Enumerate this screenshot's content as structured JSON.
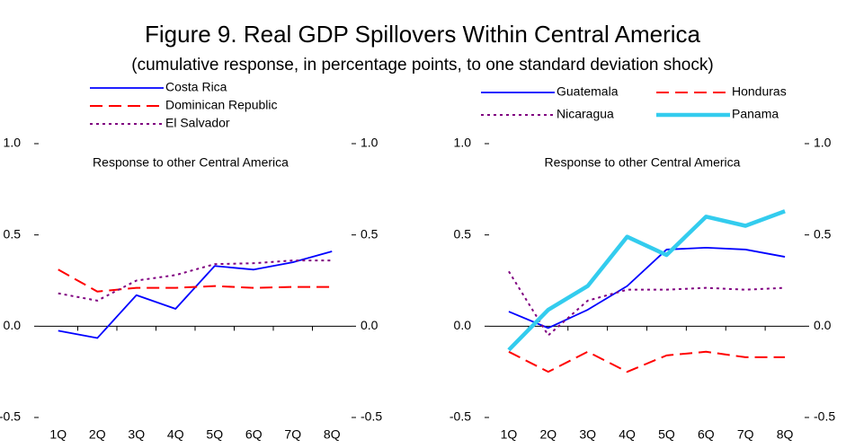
{
  "title": "Figure 9. Real GDP Spillovers Within Central America",
  "subtitle": "(cumulative response, in percentage points, to one standard deviation shock)",
  "chart_data": [
    {
      "type": "line",
      "annotation": "Response to other Central America",
      "categories": [
        "1Q",
        "2Q",
        "3Q",
        "4Q",
        "5Q",
        "6Q",
        "7Q",
        "8Q"
      ],
      "ylim": [
        -0.5,
        1.0
      ],
      "yticks": [
        {
          "value": 1,
          "label": "1.0"
        },
        {
          "value": 0.5,
          "label": "0.5"
        },
        {
          "value": 0,
          "label": "0.0"
        },
        {
          "value": -0.5,
          "label": "-0.5"
        }
      ],
      "y2lim": [
        -0.5,
        1.0
      ],
      "y2ticks": [
        {
          "value": 1,
          "label": "1.0"
        },
        {
          "value": 0.5,
          "label": "0.5"
        },
        {
          "value": 0,
          "label": "0.0"
        },
        {
          "value": -0.5,
          "label": "-0.5"
        }
      ],
      "series": [
        {
          "name": "Costa Rica",
          "color": "#0000ff",
          "style": "solid",
          "values": [
            -0.025,
            -0.065,
            0.17,
            0.095,
            0.33,
            0.31,
            0.35,
            0.41
          ]
        },
        {
          "name": "Dominican Republic",
          "color": "#ff0000",
          "style": "dashed",
          "values": [
            0.31,
            0.19,
            0.21,
            0.21,
            0.22,
            0.21,
            0.215,
            0.215
          ]
        },
        {
          "name": "El Salvador",
          "color": "#800080",
          "style": "dotted",
          "values": [
            0.18,
            0.14,
            0.25,
            0.28,
            0.34,
            0.345,
            0.36,
            0.36
          ]
        }
      ]
    },
    {
      "type": "line",
      "annotation": "Response to other Central America",
      "categories": [
        "1Q",
        "2Q",
        "3Q",
        "4Q",
        "5Q",
        "6Q",
        "7Q",
        "8Q"
      ],
      "ylim": [
        -0.5,
        1.0
      ],
      "yticks": [
        {
          "value": 1,
          "label": "1.0"
        },
        {
          "value": 0.5,
          "label": "0.5"
        },
        {
          "value": 0,
          "label": "0.0"
        },
        {
          "value": -0.5,
          "label": "-0.5"
        }
      ],
      "y2lim": [
        -0.5,
        1.0
      ],
      "y2ticks": [
        {
          "value": 1,
          "label": "1.0"
        },
        {
          "value": 0.5,
          "label": "0.5"
        },
        {
          "value": 0,
          "label": "0.0"
        },
        {
          "value": -0.5,
          "label": "-0.5"
        }
      ],
      "series": [
        {
          "name": "Guatemala",
          "color": "#0000ff",
          "style": "solid",
          "values": [
            0.08,
            -0.01,
            0.09,
            0.22,
            0.42,
            0.43,
            0.42,
            0.38
          ]
        },
        {
          "name": "Honduras",
          "color": "#ff0000",
          "style": "dashed",
          "values": [
            -0.14,
            -0.25,
            -0.14,
            -0.25,
            -0.16,
            -0.14,
            -0.17,
            -0.17
          ]
        },
        {
          "name": "Nicaragua",
          "color": "#800080",
          "style": "dotted",
          "values": [
            0.3,
            -0.05,
            0.14,
            0.2,
            0.2,
            0.21,
            0.2,
            0.21
          ]
        },
        {
          "name": "Panama",
          "color": "#33ccee",
          "style": "thick",
          "values": [
            -0.13,
            0.09,
            0.22,
            0.49,
            0.39,
            0.6,
            0.55,
            0.63
          ]
        }
      ]
    }
  ]
}
